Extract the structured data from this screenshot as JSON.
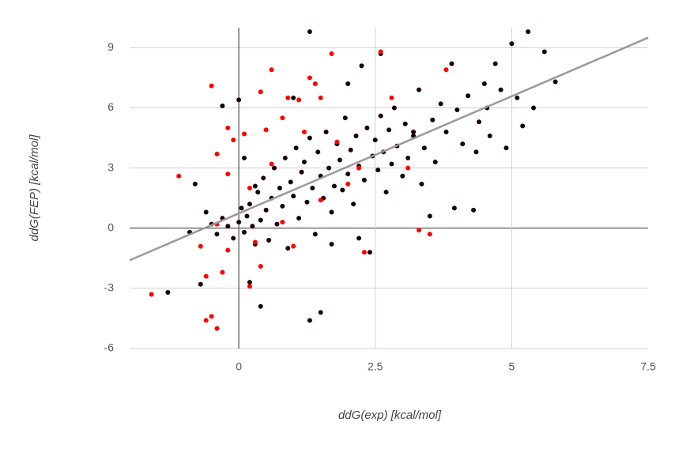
{
  "chart_data": {
    "type": "scatter",
    "x_label": "ddG(exp) [kcal/mol]",
    "y_label": "ddG(FEP) [kcal/mol]",
    "xlim": [
      -2,
      7.5
    ],
    "ylim": [
      -6,
      10
    ],
    "xticks": [
      0,
      2.5,
      5,
      7.5
    ],
    "yticks": [
      -6,
      -3,
      0,
      3,
      6,
      9
    ],
    "grid": true,
    "series": [
      {
        "color": "#1a0000",
        "x": [
          -0.5,
          -0.4,
          -0.3,
          -0.2,
          -0.1,
          0,
          0.05,
          0.1,
          0.15,
          0.2,
          0.25,
          0.3,
          0.35,
          0.4,
          0.45,
          0.5,
          0.55,
          0.6,
          0.65,
          0.7,
          0.75,
          0.8,
          0.85,
          0.9,
          0.95,
          1,
          1.05,
          1.1,
          1.15,
          1.2,
          1.25,
          1.3,
          1.35,
          1.4,
          1.45,
          1.5,
          1.55,
          1.6,
          1.65,
          1.7,
          1.75,
          1.8,
          1.85,
          1.9,
          1.95,
          2,
          2.05,
          2.1,
          2.15,
          2.2,
          2.25,
          2.3,
          2.35,
          2.4,
          2.45,
          2.5,
          2.55,
          2.6,
          2.65,
          2.7,
          2.75,
          2.8,
          2.85,
          2.9,
          3,
          3.05,
          3.1,
          3.2,
          3.3,
          3.35,
          3.4,
          3.5,
          3.55,
          3.6,
          3.7,
          3.8,
          3.9,
          3.95,
          4,
          4.1,
          4.2,
          4.3,
          4.35,
          4.4,
          4.5,
          4.55,
          4.6,
          4.7,
          4.8,
          4.9,
          5,
          5.1,
          5.2,
          5.3,
          5.4,
          5.6,
          5.8,
          1.3,
          1.3,
          1.5,
          0.4,
          0.2,
          -0.7,
          -1.3,
          -0.9,
          -0.8,
          -0.3,
          0,
          -0.6,
          0.1,
          0.3,
          1,
          2,
          2.6,
          3.2,
          1.7,
          2.2
        ],
        "y": [
          0.2,
          -0.3,
          0.5,
          0.1,
          -0.5,
          0.3,
          1,
          -0.2,
          0.6,
          1.2,
          0.1,
          -0.8,
          1.8,
          0.4,
          2.5,
          0.9,
          -0.6,
          1.5,
          3,
          0.2,
          2,
          1.1,
          3.5,
          -1,
          2.3,
          1.6,
          4,
          0.5,
          2.8,
          3.3,
          1.3,
          4.5,
          2,
          -0.3,
          3.8,
          2.6,
          1.5,
          4.8,
          3,
          0.8,
          2.1,
          4.2,
          3.4,
          1.9,
          5.5,
          2.7,
          3.9,
          1.2,
          4.6,
          3.1,
          8.1,
          2.4,
          5,
          -1.2,
          3.6,
          4.4,
          2.9,
          5.6,
          3.8,
          1.8,
          4.9,
          3.2,
          6,
          4.1,
          2.6,
          5.2,
          3.5,
          4.6,
          6.9,
          2.2,
          4,
          0.6,
          5.4,
          3.3,
          6.2,
          4.8,
          8.2,
          1,
          5.9,
          4.2,
          6.6,
          0.9,
          3.8,
          5.3,
          7.2,
          6,
          4.6,
          8.2,
          6.9,
          4,
          9.2,
          6.5,
          5.1,
          9.8,
          6,
          8.8,
          7.3,
          9.8,
          -4.6,
          -4.2,
          -3.9,
          -2.7,
          -2.8,
          -3.2,
          -0.2,
          2.2,
          6.1,
          6.4,
          0.8,
          3.5,
          2.1,
          6.5,
          7.2,
          8.7,
          4.8,
          -0.8,
          -0.5
        ]
      },
      {
        "color": "#ff0000",
        "x": [
          -1.6,
          -1.1,
          -0.6,
          -0.5,
          -0.4,
          -0.5,
          -0.4,
          -0.2,
          -0.2,
          -0.1,
          0.1,
          0.2,
          0.3,
          0.4,
          0.5,
          0.6,
          0.6,
          0.8,
          0.9,
          1.1,
          1.2,
          1.3,
          1.4,
          1.5,
          1.7,
          1.8,
          2,
          2.2,
          2.3,
          2.6,
          2.8,
          3.1,
          3.3,
          3.5,
          3.8,
          -0.3,
          -0.6,
          0.4,
          0.8,
          1.5,
          -0.4,
          -0.2,
          0.2,
          -0.7,
          1
        ],
        "y": [
          -3.3,
          2.6,
          -4.6,
          -4.4,
          -5,
          7.1,
          3.7,
          2.7,
          5,
          4.4,
          4.7,
          2,
          -0.7,
          6.8,
          4.9,
          7.9,
          3.2,
          5.5,
          6.5,
          6.4,
          4.8,
          7.5,
          7.2,
          6.5,
          8.7,
          4.3,
          2.2,
          3,
          -1.2,
          8.8,
          6.5,
          3,
          -0.1,
          -0.3,
          7.9,
          -2.2,
          -2.4,
          -1.9,
          0.3,
          1.4,
          0.2,
          -1.1,
          -2.9,
          -0.9,
          -0.9
        ]
      }
    ],
    "trendline": {
      "color": "#999999",
      "x": [
        -2,
        7.5
      ],
      "y": [
        -1.6,
        9.5
      ]
    }
  }
}
